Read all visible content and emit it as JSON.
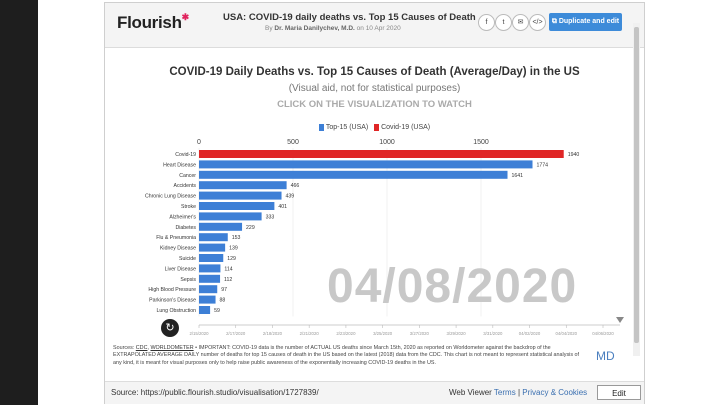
{
  "header": {
    "logo": "Flourish",
    "title": "USA: COVID-19 daily deaths vs. Top 15 Causes of Death",
    "byline_prefix": "By",
    "author": "Dr. Maria Danilychev, M.D.",
    "byline_suffix": "on 10 Apr 2020",
    "share_icons": [
      "facebook-icon",
      "twitter-icon",
      "email-icon",
      "embed-icon"
    ],
    "duplicate_label": "Duplicate and edit"
  },
  "viz": {
    "title": "COVID-19 Daily Deaths vs. Top 15 Causes of Death (Average/Day) in the US",
    "subtitle": "(Visual aid, not for statistical purposes)",
    "cta": "CLICK ON THE VISUALIZATION TO WATCH",
    "date": "04/08/2020",
    "watermark": "MD"
  },
  "colors": {
    "top15": "#3d7fd6",
    "covid": "#e02626"
  },
  "chart_data": {
    "type": "bar",
    "orientation": "horizontal",
    "categories": [
      "Covid-19",
      "Heart Disease",
      "Cancer",
      "Accidents",
      "Chronic Lung Disease",
      "Stroke",
      "Alzheimer's",
      "Diabetes",
      "Flu & Pneumonia",
      "Kidney Disease",
      "Suicide",
      "Liver Disease",
      "Sepsis",
      "High Blood Pressure",
      "Parkinson's Disease",
      "Lung Obstruction"
    ],
    "values": [
      1940,
      1774,
      1641,
      466,
      439,
      401,
      333,
      229,
      153,
      139,
      129,
      114,
      112,
      97,
      88,
      59
    ],
    "series_of": [
      "Covid-19 (USA)",
      "Top-15 (USA)",
      "Top-15 (USA)",
      "Top-15 (USA)",
      "Top-15 (USA)",
      "Top-15 (USA)",
      "Top-15 (USA)",
      "Top-15 (USA)",
      "Top-15 (USA)",
      "Top-15 (USA)",
      "Top-15 (USA)",
      "Top-15 (USA)",
      "Top-15 (USA)",
      "Top-15 (USA)",
      "Top-15 (USA)",
      "Top-15 (USA)"
    ],
    "legend": [
      "Top-15 (USA)",
      "Covid-19 (USA)"
    ],
    "legend_position": "top-center",
    "x_ticks": [
      0,
      500,
      1000,
      1500
    ],
    "xlim": [
      0,
      2000
    ],
    "timeline_labels": [
      "2/15/2020",
      "2/17/2020",
      "2/18/2020",
      "2/21/2020",
      "2/23/2020",
      "3/25/2020",
      "3/27/2020",
      "3/29/2020",
      "3/31/2020",
      "04/02/2020",
      "04/04/2020",
      "04/06/2020"
    ]
  },
  "note": {
    "prefix": "Sources:",
    "link1": "CDC",
    "sep": ",",
    "link2": "WORLDOMETER",
    "text": "• IMPORTANT: COVID-19 data is the number of ACTUAL US deaths since March 15th, 2020 as reported on Worldometer against the backdrop of the EXTRAPOLATED AVERAGE DAILY number of deaths for top 15 causes of death in the US based on the latest (2018) data from the CDC. This chart is not meant to represent statistical analysis of any kind, it is meant for visual purposes only to help raise public awareness of the exponentially increasing COVID-19 deaths in the US."
  },
  "footer": {
    "source": "Source: https://public.flourish.studio/visualisation/1727839/",
    "web_viewer": "Web Viewer",
    "terms": "Terms",
    "pipe": "|",
    "privacy": "Privacy & Cookies",
    "edit": "Edit"
  }
}
